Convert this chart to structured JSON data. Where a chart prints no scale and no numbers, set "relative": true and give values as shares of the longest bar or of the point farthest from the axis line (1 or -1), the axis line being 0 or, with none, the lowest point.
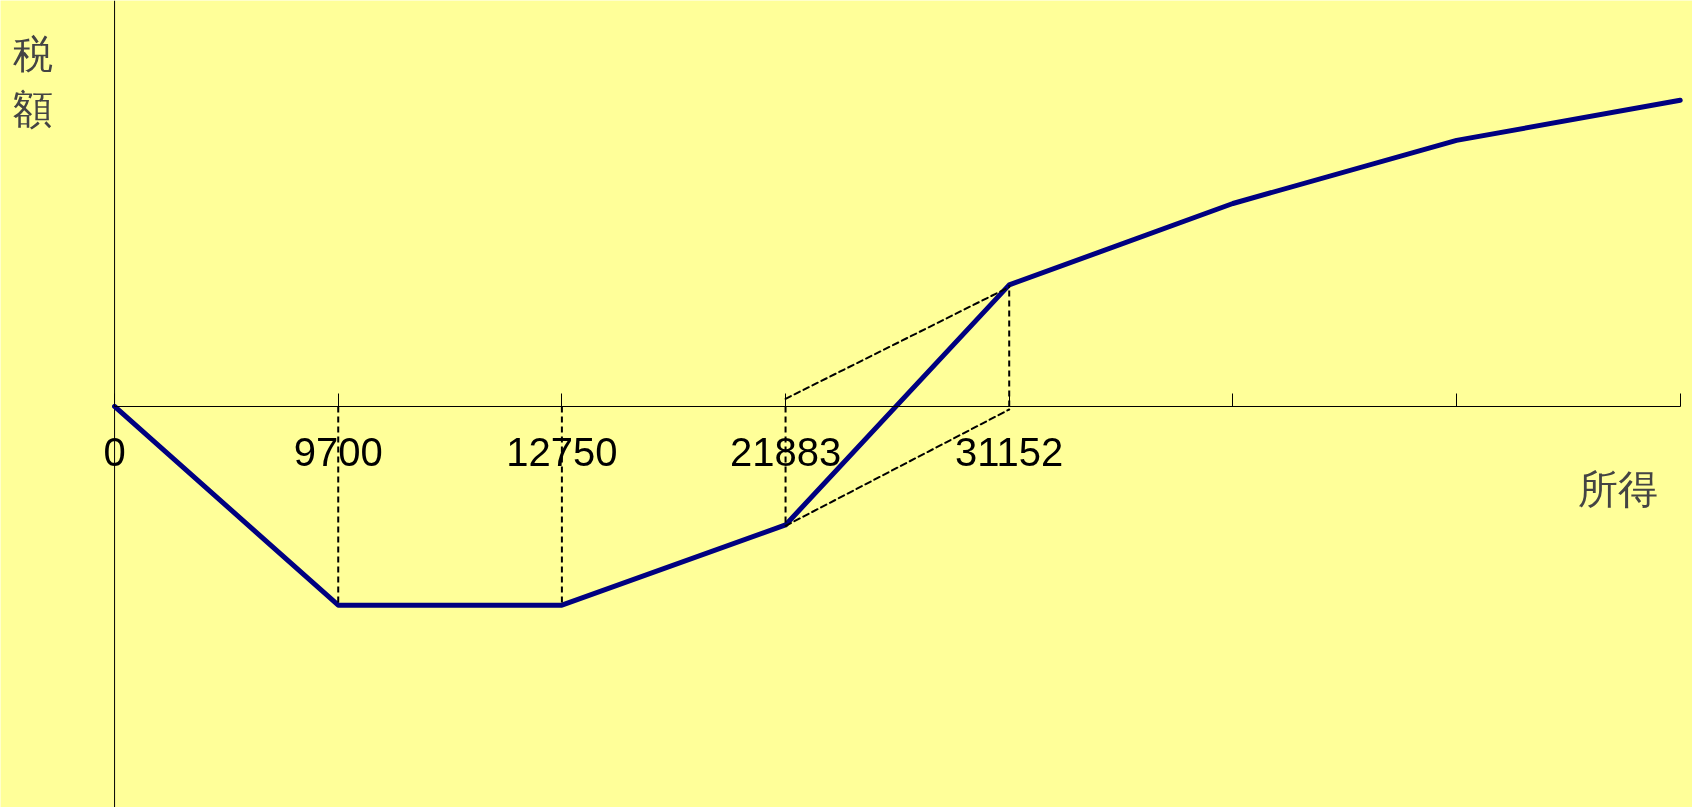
{
  "chart_data": {
    "type": "line",
    "relative": true,
    "xlabel": "所得",
    "ylabel": "税額",
    "categories": [
      "0",
      "9700",
      "12750",
      "21883",
      "31152",
      null,
      null,
      null
    ],
    "series": [
      {
        "color": "#000080",
        "values": [
          0,
          -0.649,
          -0.649,
          -0.387,
          0.397,
          0.663,
          0.869,
          1
        ]
      },
      {
        "line_style": "dashed",
        "color": "#000000",
        "values": [
          null,
          null,
          null,
          0.025,
          0.39,
          null,
          null,
          null
        ]
      },
      {
        "line_style": "dashed",
        "color": "#000000",
        "values": [
          null,
          null,
          null,
          -0.39,
          -0.01,
          null,
          null,
          null
        ]
      }
    ],
    "ref_lines": [
      {
        "axis": "x",
        "value": "9700",
        "color": "#000000",
        "line_style": "dashed"
      },
      {
        "axis": "x",
        "value": "12750",
        "color": "#000000",
        "line_style": "dashed"
      },
      {
        "axis": "x",
        "value": "21883",
        "color": "#000000",
        "line_style": "dashed"
      },
      {
        "axis": "x",
        "value": "31152",
        "color": "#000000",
        "line_style": "dashed"
      }
    ]
  }
}
